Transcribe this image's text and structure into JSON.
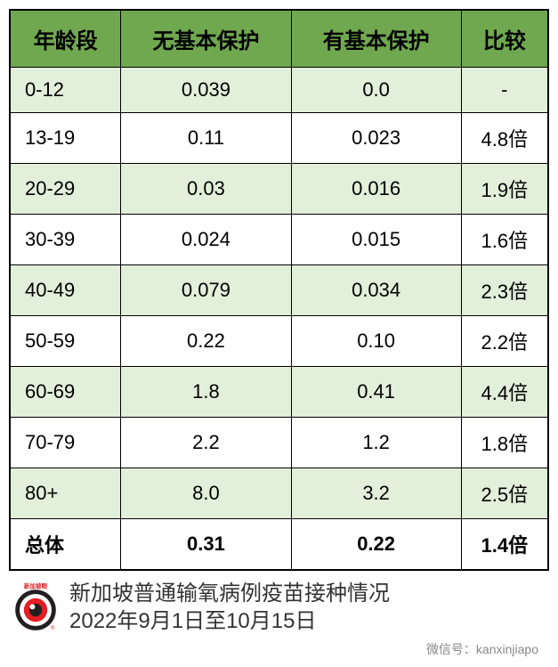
{
  "table": {
    "columns": [
      "年龄段",
      "无基本保护",
      "有基本保护",
      "比较"
    ],
    "rows": [
      {
        "age": "0-12",
        "no_protect": "0.039",
        "protect": "0.0",
        "ratio": "-",
        "bold": false,
        "odd": true
      },
      {
        "age": "13-19",
        "no_protect": "0.11",
        "protect": "0.023",
        "ratio": "4.8倍",
        "bold": false,
        "odd": false
      },
      {
        "age": "20-29",
        "no_protect": "0.03",
        "protect": "0.016",
        "ratio": "1.9倍",
        "bold": false,
        "odd": true
      },
      {
        "age": "30-39",
        "no_protect": "0.024",
        "protect": "0.015",
        "ratio": "1.6倍",
        "bold": false,
        "odd": false
      },
      {
        "age": "40-49",
        "no_protect": "0.079",
        "protect": "0.034",
        "ratio": "2.3倍",
        "bold": false,
        "odd": true
      },
      {
        "age": "50-59",
        "no_protect": "0.22",
        "protect": "0.10",
        "ratio": "2.2倍",
        "bold": false,
        "odd": false
      },
      {
        "age": "60-69",
        "no_protect": "1.8",
        "protect": "0.41",
        "ratio": "4.4倍",
        "bold": false,
        "odd": true
      },
      {
        "age": "70-79",
        "no_protect": "2.2",
        "protect": "1.2",
        "ratio": "1.8倍",
        "bold": false,
        "odd": false
      },
      {
        "age": "80+",
        "no_protect": "8.0",
        "protect": "3.2",
        "ratio": "2.5倍",
        "bold": false,
        "odd": true
      },
      {
        "age": "总体",
        "no_protect": "0.31",
        "protect": "0.22",
        "ratio": "1.4倍",
        "bold": true,
        "odd": false
      }
    ],
    "header_bg": "#70a84f",
    "row_odd_bg": "#e2efda",
    "row_even_bg": "#ffffff",
    "border_color": "#000000"
  },
  "footer": {
    "line1": "新加坡普通输氧病例疫苗接种情况",
    "line2": "2022年9月1日至10月15日",
    "logo_label": "新加坡眼",
    "logo_colors": {
      "outer": "#231f20",
      "white": "#ffffff",
      "red": "#e31e24"
    }
  },
  "wechat": "微信号：kanxinjiapo"
}
